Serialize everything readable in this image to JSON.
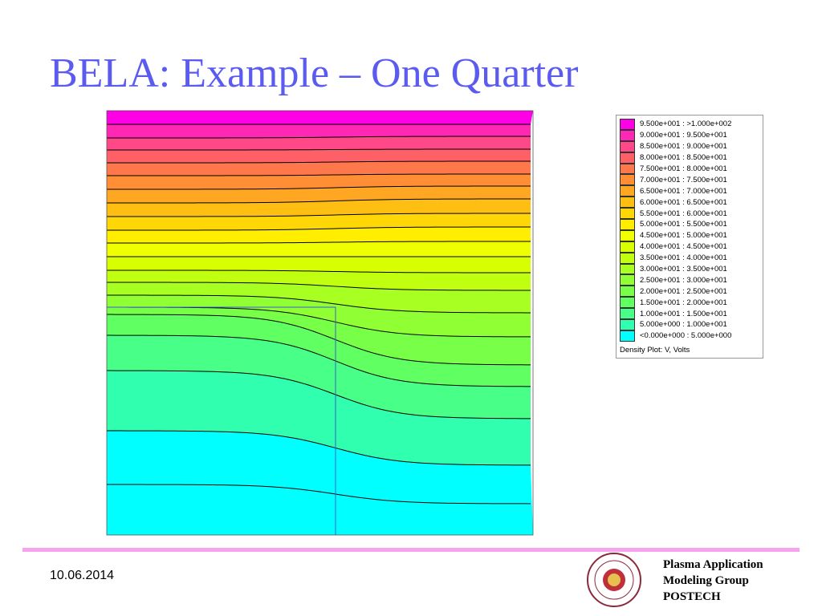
{
  "title": "BELA: Example – One Quarter",
  "legend": {
    "entries": [
      {
        "label": "9.500e+001 : >1.000e+002",
        "color": "#ff00e6"
      },
      {
        "label": "9.000e+001 : 9.500e+001",
        "color": "#ff28b4"
      },
      {
        "label": "8.500e+001 : 9.000e+001",
        "color": "#ff4888"
      },
      {
        "label": "8.000e+001 : 8.500e+001",
        "color": "#ff6068"
      },
      {
        "label": "7.500e+001 : 8.000e+001",
        "color": "#ff784c"
      },
      {
        "label": "7.000e+001 : 7.500e+001",
        "color": "#ff8e34"
      },
      {
        "label": "6.500e+001 : 7.000e+001",
        "color": "#ffa622"
      },
      {
        "label": "6.000e+001 : 6.500e+001",
        "color": "#ffbe12"
      },
      {
        "label": "5.500e+001 : 6.000e+001",
        "color": "#ffd606"
      },
      {
        "label": "5.000e+001 : 5.500e+001",
        "color": "#ffee00"
      },
      {
        "label": "4.500e+001 : 5.000e+001",
        "color": "#f0ff00"
      },
      {
        "label": "4.000e+001 : 4.500e+001",
        "color": "#d8ff00"
      },
      {
        "label": "3.500e+001 : 4.000e+001",
        "color": "#c0ff10"
      },
      {
        "label": "3.000e+001 : 3.500e+001",
        "color": "#a8ff22"
      },
      {
        "label": "2.500e+001 : 3.000e+001",
        "color": "#90ff34"
      },
      {
        "label": "2.000e+001 : 2.500e+001",
        "color": "#78ff48"
      },
      {
        "label": "1.500e+001 : 2.000e+001",
        "color": "#60ff62"
      },
      {
        "label": "1.000e+001 : 1.500e+001",
        "color": "#48ff88"
      },
      {
        "label": "5.000e+000 : 1.000e+001",
        "color": "#30ffb0"
      },
      {
        "label": "<0.000e+000 : 5.000e+000",
        "color": "#00ffff"
      }
    ],
    "caption": "Density Plot: V, Volts"
  },
  "footer": {
    "date": "10.06.2014",
    "group": [
      "Plasma Application",
      "Modeling Group",
      "POSTECH"
    ]
  }
}
